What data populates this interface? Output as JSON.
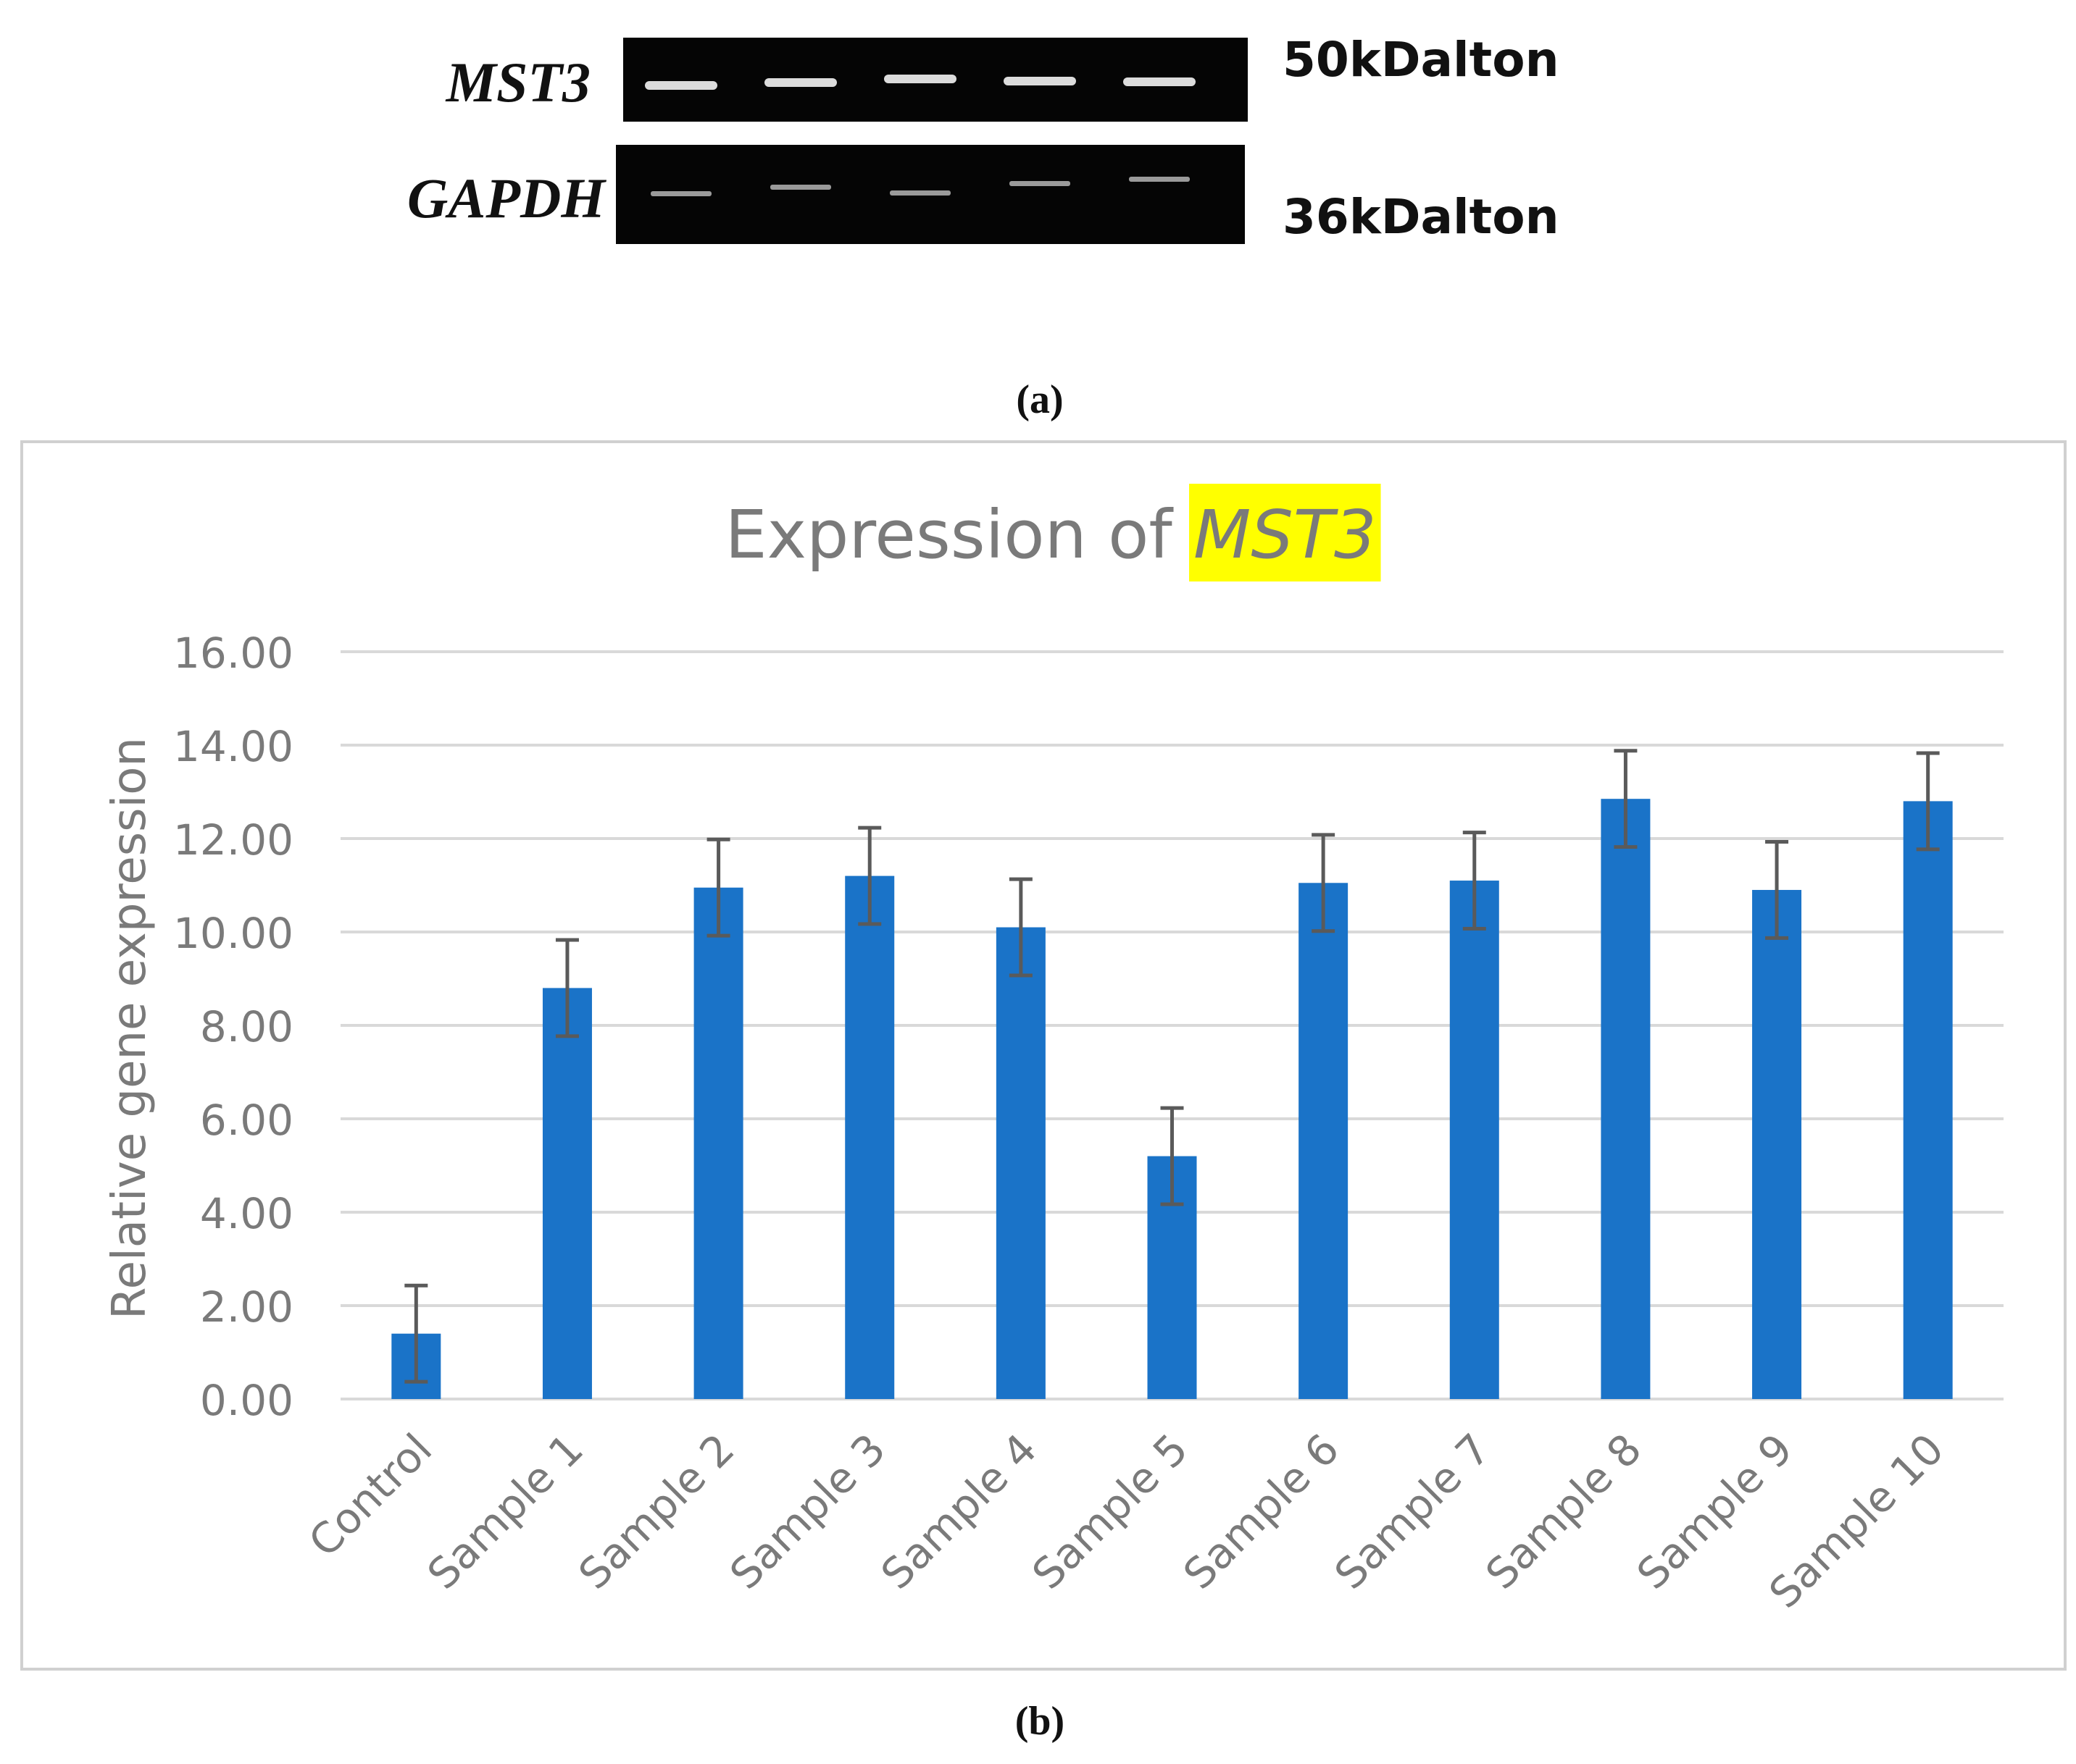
{
  "blot": {
    "rows": [
      {
        "name": "MST3",
        "weight": "50kDalton"
      },
      {
        "name": "GAPDH",
        "weight": "36kDalton"
      }
    ],
    "lane_count": 5
  },
  "panel_a_label": "(a)",
  "panel_b_label": "(b)",
  "chart_data": {
    "type": "bar",
    "title_prefix": "Expression of ",
    "title_gene": "MST3",
    "ylabel": "Relative gene expression",
    "xlabel": "",
    "ylim": [
      0,
      16
    ],
    "yticks": [
      "0.00",
      "2.00",
      "4.00",
      "6.00",
      "8.00",
      "10.00",
      "12.00",
      "14.00",
      "16.00"
    ],
    "grid": true,
    "categories": [
      "Control",
      "Sample 1",
      "Sample 2",
      "Sample 3",
      "Sample 4",
      "Sample 5",
      "Sample 6",
      "Sample 7",
      "Sample 8",
      "Sample 9",
      "Sample 10"
    ],
    "values": [
      1.4,
      8.8,
      10.95,
      11.2,
      10.1,
      5.2,
      11.05,
      11.1,
      12.85,
      10.9,
      12.8
    ],
    "error": [
      1.03,
      1.03,
      1.03,
      1.03,
      1.03,
      1.03,
      1.03,
      1.03,
      1.03,
      1.03,
      1.03
    ],
    "colors": {
      "bar": "#1a73c8",
      "error": "#5a5a5a",
      "grid": "#d9d9d9",
      "text": "#7a7a7a",
      "highlight": "#ffff00"
    }
  }
}
